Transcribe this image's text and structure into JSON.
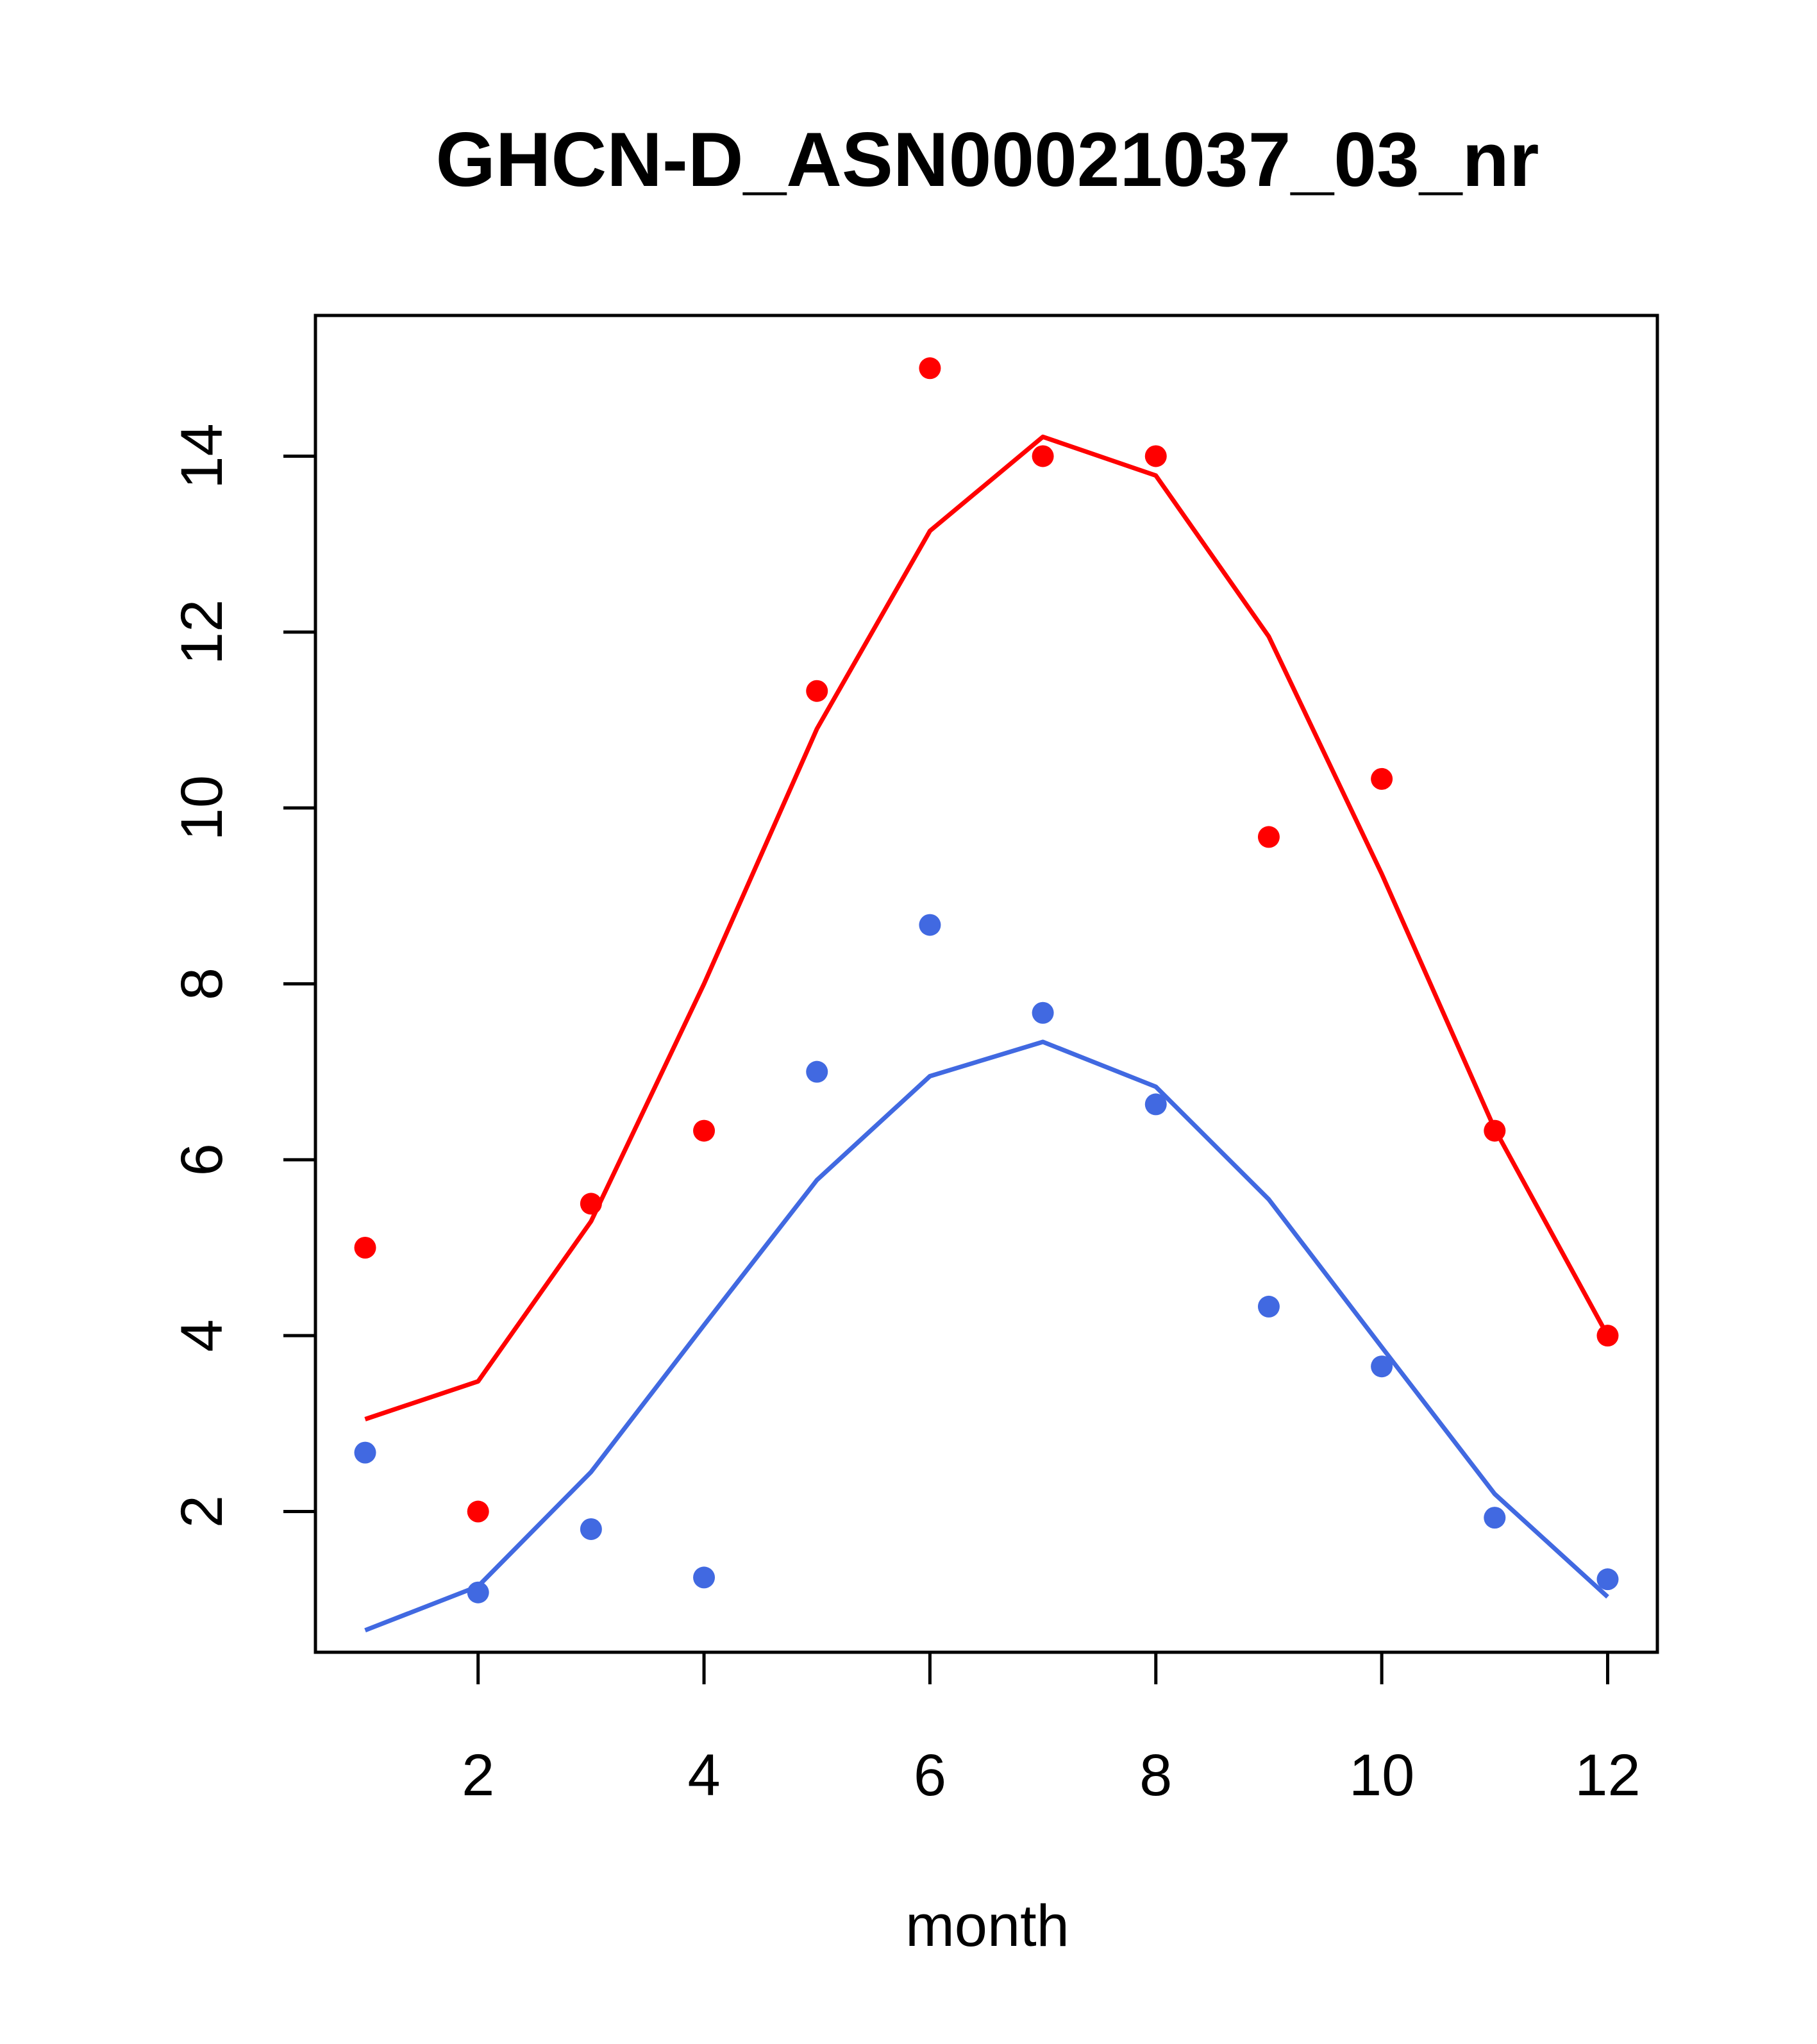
{
  "chart_data": {
    "type": "scatter",
    "title": "GHCN-D_ASN00021037_03_nr",
    "xlabel": "month",
    "ylabel": "",
    "xlim": [
      0.56,
      12.44
    ],
    "ylim": [
      0.4,
      15.6
    ],
    "x_ticks": [
      2,
      4,
      6,
      8,
      10,
      12
    ],
    "y_ticks": [
      2,
      4,
      6,
      8,
      10,
      12,
      14
    ],
    "grid": false,
    "legend": "none",
    "x": [
      1,
      2,
      3,
      4,
      5,
      6,
      7,
      8,
      9,
      10,
      11,
      12
    ],
    "series": [
      {
        "color": "#ff0000",
        "points": [
          5.0,
          2.0,
          5.5,
          6.33,
          11.33,
          15.0,
          14.0,
          14.0,
          9.67,
          10.33,
          6.33,
          4.0
        ],
        "fit": [
          3.05,
          3.48,
          5.3,
          8.0,
          10.9,
          13.15,
          14.22,
          13.78,
          11.95,
          9.25,
          6.35,
          4.0
        ]
      },
      {
        "color": "#4169e1",
        "points": [
          2.67,
          1.08,
          1.8,
          1.25,
          7.0,
          8.67,
          7.67,
          6.63,
          4.33,
          3.65,
          1.93,
          1.23
        ],
        "fit": [
          0.65,
          1.15,
          2.45,
          4.12,
          5.77,
          6.95,
          7.34,
          6.83,
          5.55,
          3.87,
          2.2,
          1.03
        ]
      }
    ]
  }
}
